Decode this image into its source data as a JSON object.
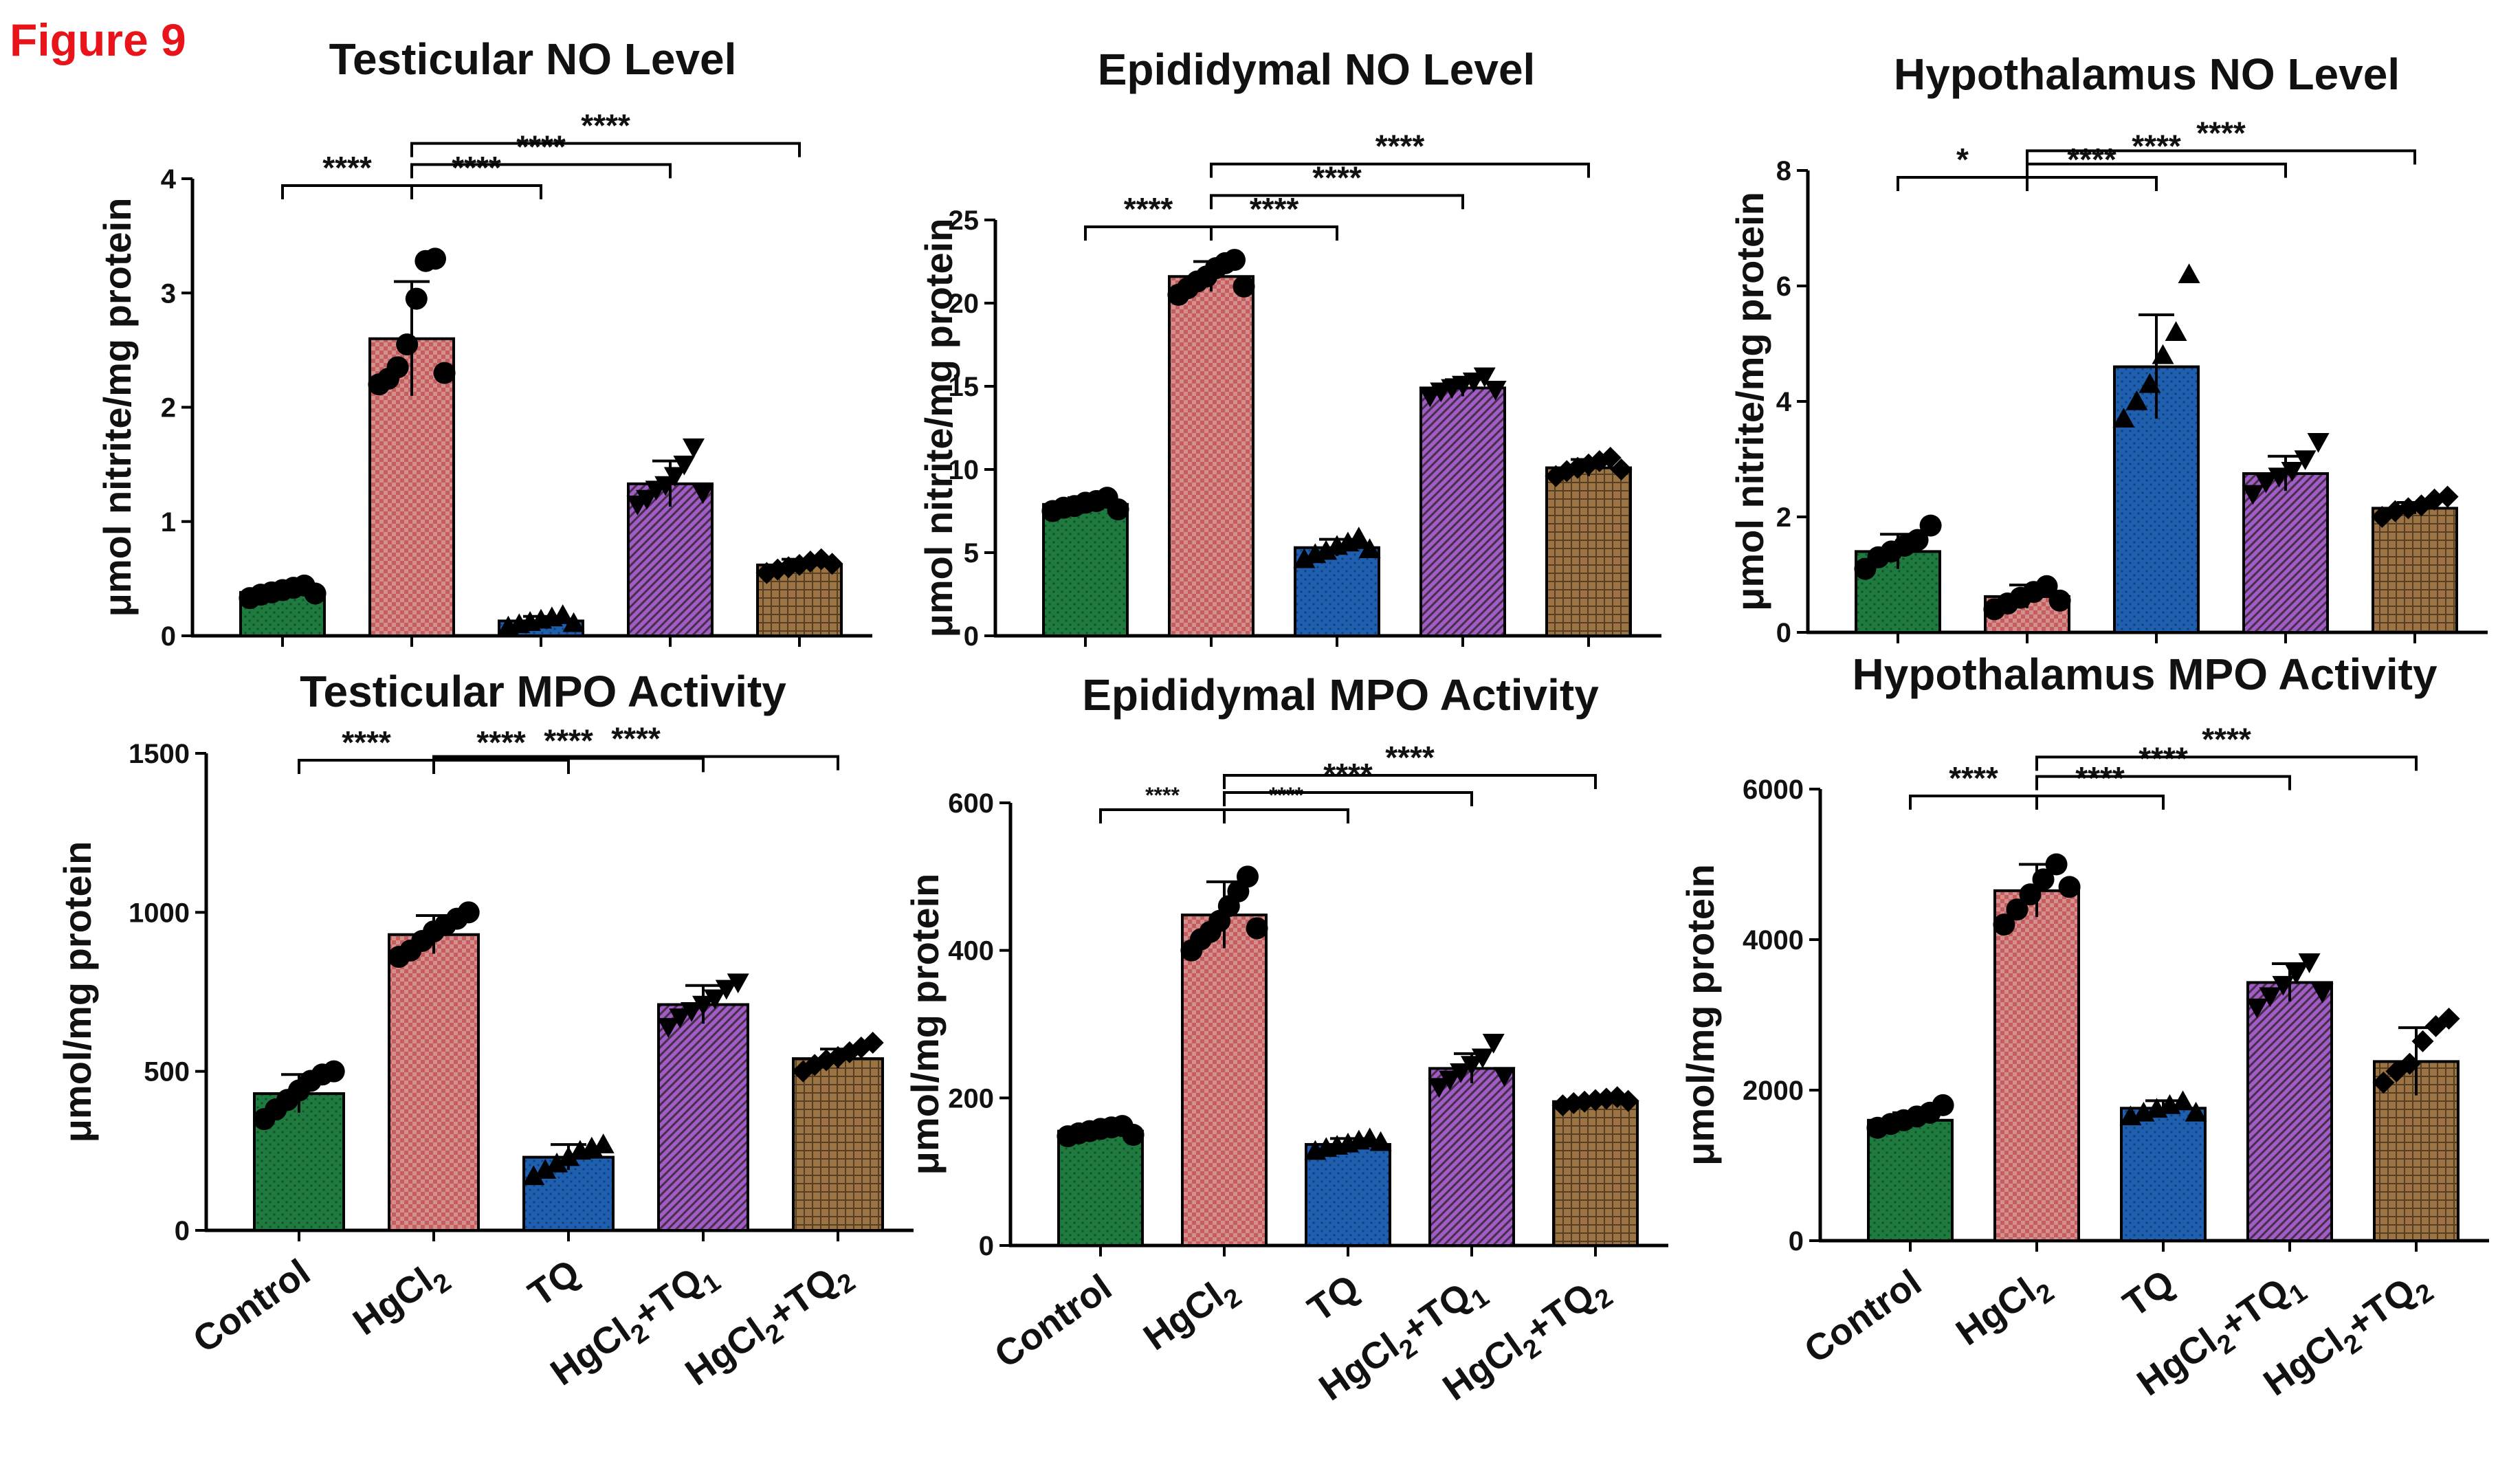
{
  "figure_label": "Figure 9",
  "colors": {
    "Control": "#1e7a3e",
    "HgCl2": "#c45e5e",
    "TQ": "#1f5fb0",
    "HgCl2+TQ1": "#a25bc4",
    "HgCl2+TQ2": "#9c7444"
  },
  "group_labels": [
    {
      "main": "Control",
      "sub1": "",
      "mid": "",
      "sub2": ""
    },
    {
      "main": "HgCl",
      "sub1": "2",
      "mid": "",
      "sub2": ""
    },
    {
      "main": "TQ",
      "sub1": "",
      "mid": "",
      "sub2": ""
    },
    {
      "main": "HgCl",
      "sub1": "2",
      "mid": "+TQ",
      "sub2": "1"
    },
    {
      "main": "HgCl",
      "sub1": "2",
      "mid": "+TQ",
      "sub2": "2"
    }
  ],
  "chart_data": [
    {
      "type": "bar",
      "title": "Testicular NO Level",
      "ylabel": "μmol nitrite/mg protein",
      "categories": [
        "Control",
        "HgCl2",
        "TQ",
        "HgCl2+TQ1",
        "HgCl2+TQ2"
      ],
      "values": [
        0.38,
        2.6,
        0.13,
        1.33,
        0.62
      ],
      "errors": [
        0.05,
        0.5,
        0.04,
        0.2,
        0.05
      ],
      "points": [
        [
          0.33,
          0.36,
          0.38,
          0.4,
          0.42,
          0.44,
          0.37
        ],
        [
          2.2,
          2.25,
          2.35,
          2.55,
          2.95,
          3.28,
          3.3,
          2.3
        ],
        [
          0.08,
          0.1,
          0.12,
          0.14,
          0.16,
          0.18,
          0.11
        ],
        [
          1.15,
          1.2,
          1.28,
          1.32,
          1.4,
          1.5,
          1.65,
          1.25
        ],
        [
          0.55,
          0.58,
          0.6,
          0.62,
          0.65,
          0.67,
          0.63
        ]
      ],
      "markers": [
        "circle",
        "circle",
        "triangle",
        "triangle-down",
        "diamond"
      ],
      "ylim": [
        0,
        4
      ],
      "yticks": [
        0,
        1,
        2,
        3,
        4
      ],
      "comparisons": [
        {
          "from": 1,
          "to": 0,
          "label": "****"
        },
        {
          "from": 1,
          "to": 2,
          "label": "****"
        },
        {
          "from": 1,
          "to": 3,
          "label": "****"
        },
        {
          "from": 1,
          "to": 4,
          "label": "****"
        }
      ]
    },
    {
      "type": "bar",
      "title": "Epididymal NO Level",
      "ylabel": "μmol nitrite/mg protein",
      "categories": [
        "Control",
        "HgCl2",
        "TQ",
        "HgCl2+TQ1",
        "HgCl2+TQ2"
      ],
      "values": [
        7.9,
        21.6,
        5.3,
        14.9,
        10.1
      ],
      "errors": [
        0.4,
        0.9,
        0.5,
        0.5,
        0.5
      ],
      "points": [
        [
          7.5,
          7.7,
          7.8,
          8.0,
          8.1,
          8.3,
          7.6
        ],
        [
          20.5,
          20.9,
          21.3,
          21.6,
          22.1,
          22.4,
          22.6,
          21.0
        ],
        [
          4.6,
          4.9,
          5.1,
          5.4,
          5.6,
          5.9,
          5.2
        ],
        [
          14.4,
          14.7,
          14.9,
          15.1,
          15.3,
          15.6,
          14.8
        ],
        [
          9.6,
          9.9,
          10.1,
          10.3,
          10.5,
          10.7,
          10.0
        ]
      ],
      "markers": [
        "circle",
        "circle",
        "triangle",
        "triangle-down",
        "diamond"
      ],
      "ylim": [
        0,
        25
      ],
      "yticks": [
        0,
        5,
        10,
        15,
        20,
        25
      ],
      "comparisons": [
        {
          "from": 1,
          "to": 0,
          "label": "****"
        },
        {
          "from": 1,
          "to": 2,
          "label": "****"
        },
        {
          "from": 1,
          "to": 3,
          "label": "****"
        },
        {
          "from": 1,
          "to": 4,
          "label": "****"
        }
      ]
    },
    {
      "type": "bar",
      "title": "Hypothalamus NO Level",
      "ylabel": "μmol nitrite/mg protein",
      "categories": [
        "Control",
        "HgCl2",
        "TQ",
        "HgCl2+TQ1",
        "HgCl2+TQ2"
      ],
      "values": [
        1.4,
        0.62,
        4.6,
        2.75,
        2.15
      ],
      "errors": [
        0.3,
        0.2,
        0.9,
        0.3,
        0.1
      ],
      "points": [
        [
          1.1,
          1.3,
          1.4,
          1.5,
          1.6,
          1.85
        ],
        [
          0.4,
          0.5,
          0.6,
          0.7,
          0.8,
          0.55
        ],
        [
          3.7,
          4.0,
          4.3,
          4.8,
          5.2,
          6.2
        ],
        [
          2.4,
          2.6,
          2.7,
          2.8,
          3.0,
          3.3
        ],
        [
          2.0,
          2.1,
          2.15,
          2.2,
          2.3,
          2.35
        ]
      ],
      "markers": [
        "circle",
        "circle",
        "triangle",
        "triangle-down",
        "diamond"
      ],
      "ylim": [
        0,
        8
      ],
      "yticks": [
        0,
        2,
        4,
        6,
        8
      ],
      "comparisons": [
        {
          "from": 1,
          "to": 0,
          "label": "*"
        },
        {
          "from": 1,
          "to": 2,
          "label": "****"
        },
        {
          "from": 1,
          "to": 3,
          "label": "****"
        },
        {
          "from": 1,
          "to": 4,
          "label": "****"
        }
      ]
    },
    {
      "type": "bar",
      "title": "Testicular MPO Activity",
      "ylabel": "μmol/mg protein",
      "categories": [
        "Control",
        "HgCl2",
        "TQ",
        "HgCl2+TQ1",
        "HgCl2+TQ2"
      ],
      "values": [
        430,
        930,
        230,
        710,
        540
      ],
      "errors": [
        60,
        60,
        40,
        60,
        30
      ],
      "points": [
        [
          350,
          380,
          410,
          440,
          470,
          490,
          500
        ],
        [
          860,
          880,
          910,
          940,
          960,
          980,
          1000
        ],
        [
          170,
          190,
          210,
          230,
          250,
          260,
          270
        ],
        [
          640,
          670,
          690,
          710,
          730,
          760,
          780
        ],
        [
          500,
          520,
          535,
          545,
          560,
          575,
          590
        ]
      ],
      "markers": [
        "circle",
        "circle",
        "triangle",
        "triangle-down",
        "diamond"
      ],
      "ylim": [
        0,
        1500
      ],
      "yticks": [
        0,
        500,
        1000,
        1500
      ],
      "comparisons": [
        {
          "from": 1,
          "to": 0,
          "label": "****"
        },
        {
          "from": 1,
          "to": 2,
          "label": "****"
        },
        {
          "from": 1,
          "to": 3,
          "label": "****"
        },
        {
          "from": 1,
          "to": 4,
          "label": "****"
        }
      ]
    },
    {
      "type": "bar",
      "title": "Epididymal MPO Activity",
      "ylabel": "μmol/mg protein",
      "categories": [
        "Control",
        "HgCl2",
        "TQ",
        "HgCl2+TQ1",
        "HgCl2+TQ2"
      ],
      "values": [
        155,
        448,
        137,
        240,
        195
      ],
      "errors": [
        8,
        45,
        8,
        20,
        5
      ],
      "points": [
        [
          148,
          152,
          155,
          158,
          160,
          162,
          150
        ],
        [
          400,
          415,
          425,
          440,
          460,
          480,
          500,
          430
        ],
        [
          128,
          132,
          135,
          138,
          142,
          145,
          140
        ],
        [
          215,
          225,
          235,
          245,
          255,
          275,
          230
        ],
        [
          190,
          193,
          195,
          197,
          199,
          201,
          196
        ]
      ],
      "markers": [
        "circle",
        "circle",
        "triangle",
        "triangle-down",
        "diamond"
      ],
      "ylim": [
        0,
        600
      ],
      "yticks": [
        0,
        200,
        400,
        600
      ],
      "comparisons": [
        {
          "from": 1,
          "to": 0,
          "label": "****"
        },
        {
          "from": 1,
          "to": 2,
          "label": "****"
        },
        {
          "from": 1,
          "to": 3,
          "label": "****"
        },
        {
          "from": 1,
          "to": 4,
          "label": "****"
        }
      ]
    },
    {
      "type": "bar",
      "title": "Hypothalamus MPO Activity",
      "ylabel": "μmol/mg protein",
      "categories": [
        "Control",
        "HgCl2",
        "TQ",
        "HgCl2+TQ1",
        "HgCl2+TQ2"
      ],
      "values": [
        1600,
        4650,
        1760,
        3430,
        2380
      ],
      "errors": [
        100,
        350,
        100,
        250,
        450
      ],
      "points": [
        [
          1500,
          1550,
          1600,
          1650,
          1700,
          1800
        ],
        [
          4200,
          4400,
          4600,
          4800,
          5000,
          4700
        ],
        [
          1650,
          1700,
          1750,
          1800,
          1850,
          1700
        ],
        [
          3100,
          3250,
          3400,
          3550,
          3700,
          3300
        ],
        [
          2100,
          2250,
          2350,
          2650,
          2850,
          2950
        ]
      ],
      "markers": [
        "circle",
        "circle",
        "triangle",
        "triangle-down",
        "diamond"
      ],
      "ylim": [
        0,
        6000
      ],
      "yticks": [
        0,
        2000,
        4000,
        6000
      ],
      "comparisons": [
        {
          "from": 1,
          "to": 0,
          "label": "****"
        },
        {
          "from": 1,
          "to": 2,
          "label": "****"
        },
        {
          "from": 1,
          "to": 3,
          "label": "****"
        },
        {
          "from": 1,
          "to": 4,
          "label": "****"
        }
      ]
    }
  ]
}
